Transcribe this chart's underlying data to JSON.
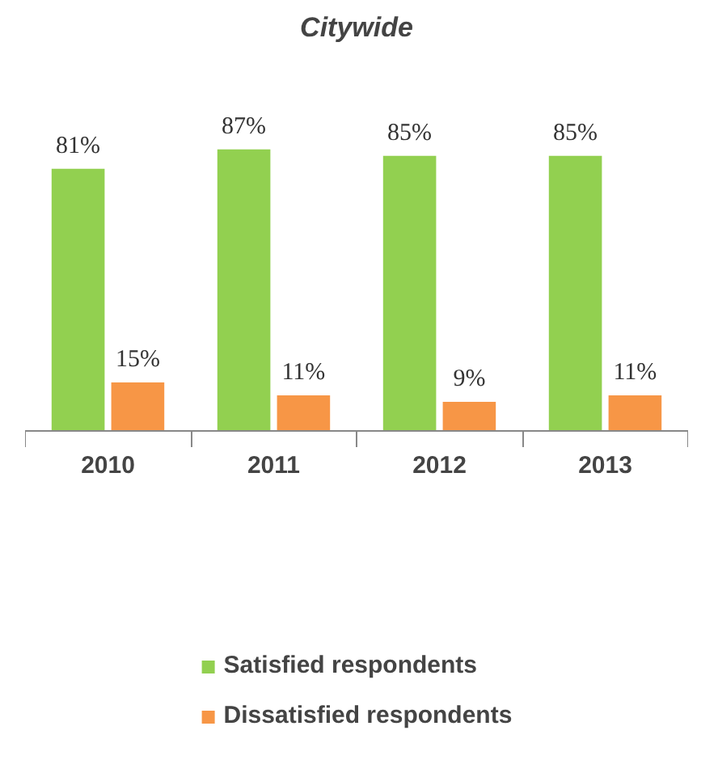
{
  "chart_data": {
    "type": "bar",
    "title": "Citywide",
    "categories": [
      "2010",
      "2011",
      "2012",
      "2013"
    ],
    "series": [
      {
        "name": "Satisfied respondents",
        "color": "#92d050",
        "values": [
          81,
          87,
          85,
          85
        ],
        "value_labels": [
          "81%",
          "87%",
          "85%",
          "85%"
        ]
      },
      {
        "name": "Dissatisfied respondents",
        "color": "#f79646",
        "values": [
          15,
          11,
          9,
          11
        ],
        "value_labels": [
          "15%",
          "11%",
          "9%",
          "11%"
        ]
      }
    ],
    "legend": "bottom"
  }
}
